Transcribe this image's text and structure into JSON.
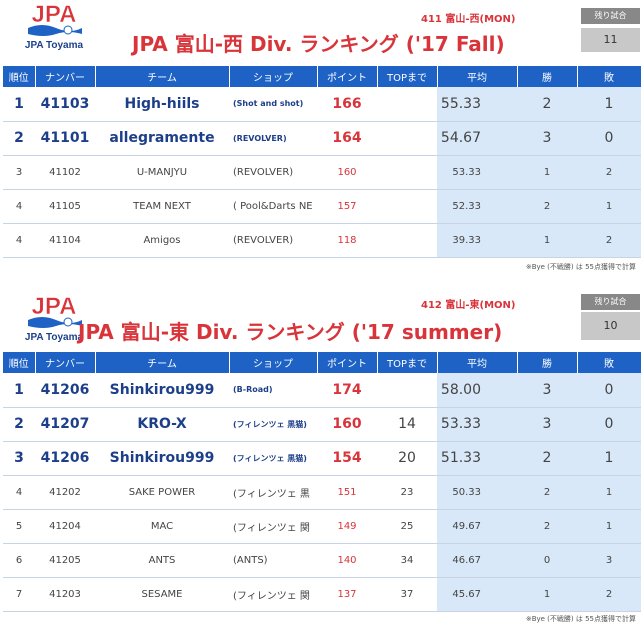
{
  "sections": [
    {
      "logo_text": "JPA",
      "logo_sub": "JPA Toyama",
      "div_code": "411 富山-西(MON)",
      "title": "JPA 富山-西 Div. ランキング ('17 Fall)",
      "remaining_label": "残り試合",
      "remaining_value": "11",
      "headers": [
        "順位",
        "ナンバー",
        "チーム",
        "ショップ",
        "ポイント",
        "TOPまで",
        "平均",
        "勝",
        "敗"
      ],
      "rows": [
        {
          "rank": "1",
          "number": "41103",
          "team": "High-hiils",
          "shop": "(Shot and shot)",
          "points": "166",
          "top": "",
          "avg": "55.33",
          "win": "2",
          "lose": "1",
          "highlight": true
        },
        {
          "rank": "2",
          "number": "41101",
          "team": "allegramente",
          "shop": "(REVOLVER)",
          "points": "164",
          "top": "",
          "avg": "54.67",
          "win": "3",
          "lose": "0",
          "highlight": true
        },
        {
          "rank": "3",
          "number": "41102",
          "team": "U-MANJYU",
          "shop": "(REVOLVER)",
          "points": "160",
          "top": "",
          "avg": "53.33",
          "win": "1",
          "lose": "2",
          "highlight": false
        },
        {
          "rank": "4",
          "number": "41105",
          "team": "TEAM NEXT",
          "shop": "( Pool&Darts NE",
          "points": "157",
          "top": "",
          "avg": "52.33",
          "win": "2",
          "lose": "1",
          "highlight": false
        },
        {
          "rank": "4",
          "number": "41104",
          "team": "Amigos",
          "shop": "(REVOLVER)",
          "points": "118",
          "top": "",
          "avg": "39.33",
          "win": "1",
          "lose": "2",
          "highlight": false
        }
      ],
      "note": "※Bye (不戦勝) は 55点獲得で計算"
    },
    {
      "logo_text": "JPA",
      "logo_sub": "JPA Toyama",
      "div_code": "412 富山-東(MON)",
      "title": "JPA 富山-東 Div. ランキング ('17 summer)",
      "remaining_label": "残り試合",
      "remaining_value": "10",
      "headers": [
        "順位",
        "ナンバー",
        "チーム",
        "ショップ",
        "ポイント",
        "TOPまで",
        "平均",
        "勝",
        "敗"
      ],
      "rows": [
        {
          "rank": "1",
          "number": "41206",
          "team": "Shinkirou999",
          "shop": "(B-Road)",
          "points": "174",
          "top": "",
          "avg": "58.00",
          "win": "3",
          "lose": "0",
          "highlight": true
        },
        {
          "rank": "2",
          "number": "41207",
          "team": "KRO-X",
          "shop": "(フィレンツェ 黒猫)",
          "points": "160",
          "top": "14",
          "avg": "53.33",
          "win": "3",
          "lose": "0",
          "highlight": true
        },
        {
          "rank": "3",
          "number": "41206",
          "team": "Shinkirou999",
          "shop": "(フィレンツェ 黒猫)",
          "points": "154",
          "top": "20",
          "avg": "51.33",
          "win": "2",
          "lose": "1",
          "highlight": true
        },
        {
          "rank": "4",
          "number": "41202",
          "team": "SAKE POWER",
          "shop": "(フィレンツェ 黒",
          "points": "151",
          "top": "23",
          "avg": "50.33",
          "win": "2",
          "lose": "1",
          "highlight": false
        },
        {
          "rank": "5",
          "number": "41204",
          "team": "MAC",
          "shop": "(フィレンツェ 関",
          "points": "149",
          "top": "25",
          "avg": "49.67",
          "win": "2",
          "lose": "1",
          "highlight": false
        },
        {
          "rank": "6",
          "number": "41205",
          "team": "ANTS",
          "shop": "(ANTS)",
          "points": "140",
          "top": "34",
          "avg": "46.67",
          "win": "0",
          "lose": "3",
          "highlight": false
        },
        {
          "rank": "7",
          "number": "41203",
          "team": "SESAME",
          "shop": "(フィレンツェ 関",
          "points": "137",
          "top": "37",
          "avg": "45.67",
          "win": "1",
          "lose": "2",
          "highlight": false
        }
      ],
      "note": "※Bye (不戦勝) は 55点獲得で計算"
    }
  ]
}
